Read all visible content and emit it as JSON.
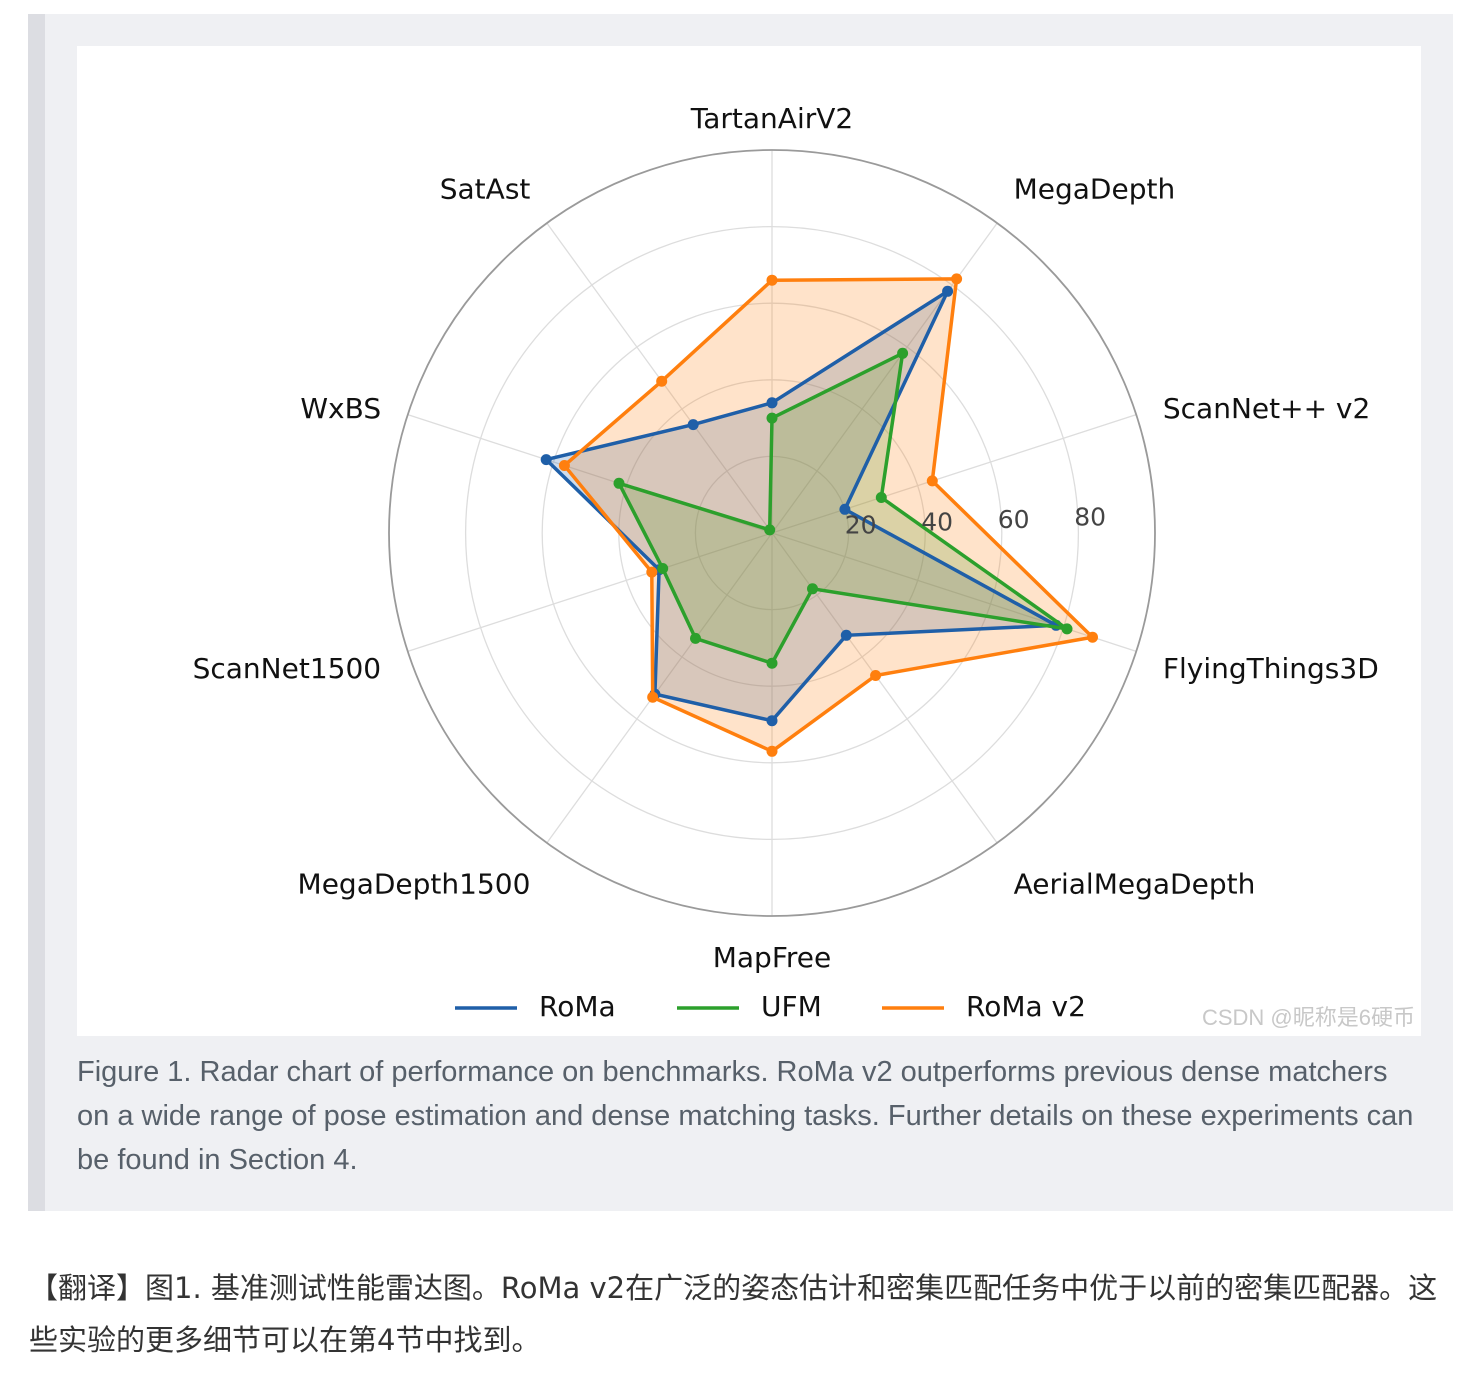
{
  "chart_data": {
    "type": "radar",
    "categories": [
      "TartanAirV2",
      "MegaDepth",
      "ScanNet++ v2",
      "FlyingThings3D",
      "AerialMegaDepth",
      "MapFree",
      "MegaDepth1500",
      "ScanNet1500",
      "WxBS",
      "SatAst"
    ],
    "series": [
      {
        "name": "RoMa",
        "color": "#1f5fa8",
        "values": [
          34,
          78,
          20,
          78,
          33,
          49,
          52,
          31,
          62,
          35
        ]
      },
      {
        "name": "UFM",
        "color": "#2ca02c",
        "values": [
          30,
          58,
          30,
          81,
          18,
          34,
          34,
          30,
          42,
          1
        ]
      },
      {
        "name": "RoMa v2",
        "color": "#ff7f0e",
        "values": [
          66,
          82,
          44,
          88,
          46,
          57,
          53,
          33,
          57,
          49
        ]
      }
    ],
    "radial_ticks": [
      20,
      40,
      60,
      80
    ],
    "rmax": 100,
    "grid": true,
    "legend": "bottom"
  },
  "watermark": "CSDN @昵称是6硬币",
  "caption": "Figure 1. Radar chart of performance on benchmarks. RoMa v2 outperforms previous dense matchers on a wide range of pose estimation and dense matching tasks. Further details on these experiments can be found in Section 4.",
  "translation": "【翻译】图1. 基准测试性能雷达图。RoMa v2在广泛的姿态估计和密集匹配任务中优于以前的密集匹配器。这些实验的更多细节可以在第4节中找到。"
}
